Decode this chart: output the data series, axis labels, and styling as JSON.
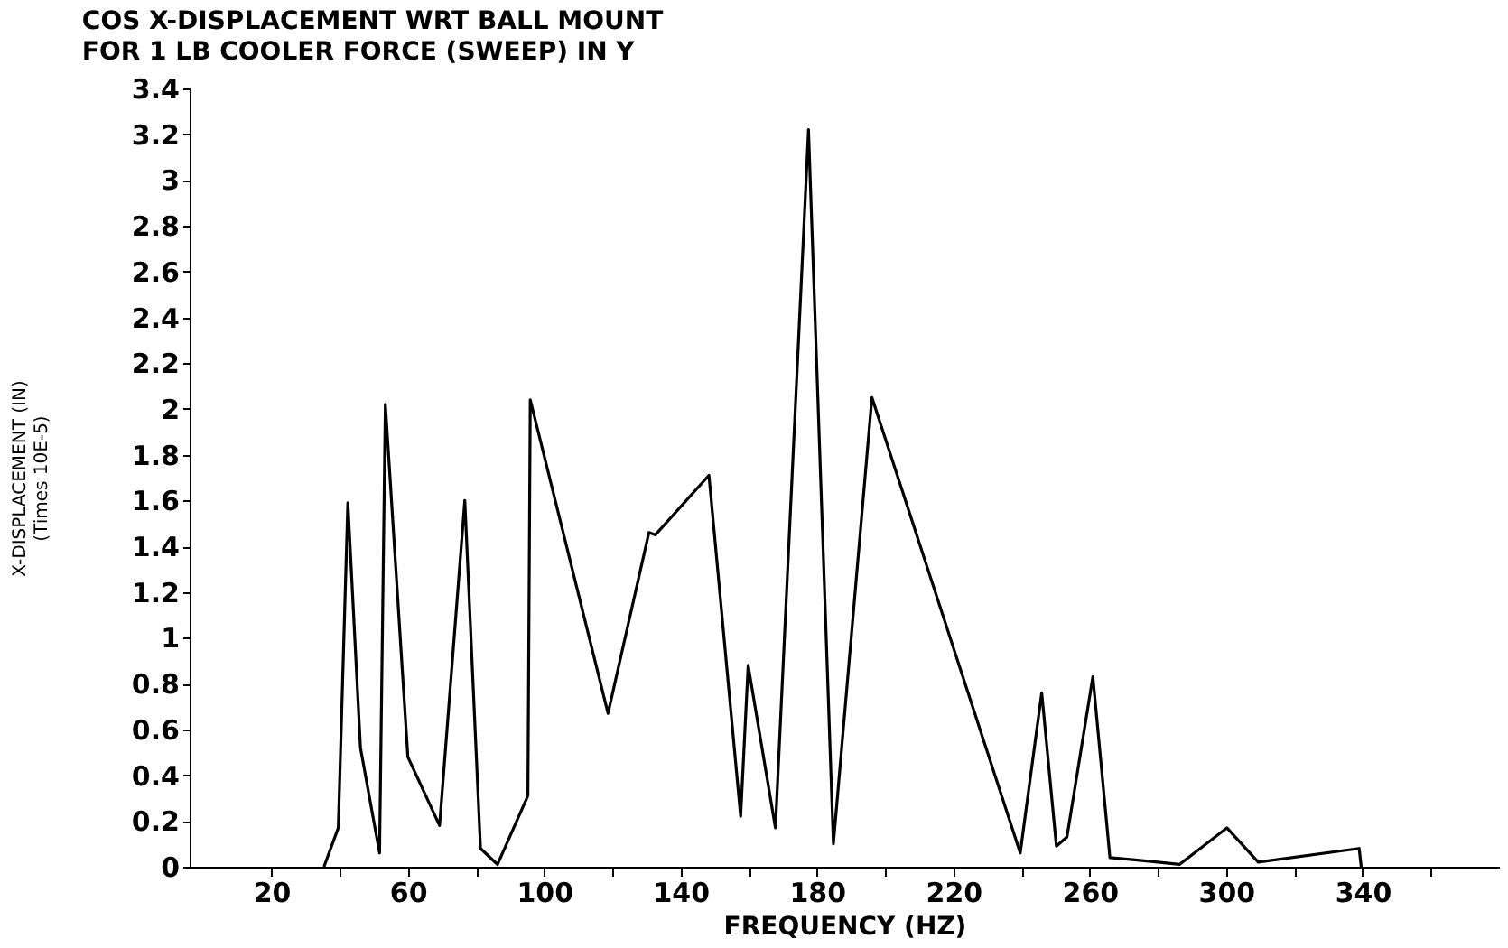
{
  "chart_data": {
    "type": "line",
    "title": "COS X-DISPLACEMENT WRT BALL MOUNT",
    "subtitle": "FOR 1 LB COOLER FORCE (SWEEP) IN Y",
    "xlabel": "FREQUENCY (HZ)",
    "ylabel": "X-DISPLACEMENT (IN)\n(Times 10E-5)",
    "x": [
      35.4,
      39.6,
      42.4,
      46.1,
      51.7,
      53.4,
      60.0,
      69.3,
      76.7,
      81.3,
      86.3,
      95.2,
      95.9,
      118.7,
      130.7,
      132.6,
      148.3,
      157.6,
      159.8,
      167.8,
      177.5,
      184.8,
      196.1,
      239.6,
      245.9,
      250.2,
      253.3,
      260.9,
      265.9,
      273.3,
      286.3,
      300.2,
      309.4,
      339.0,
      339.6
    ],
    "series": [
      {
        "color": "#000000",
        "values": [
          0,
          0.17,
          1.59,
          0.52,
          0.06,
          2.02,
          0.48,
          0.18,
          1.6,
          0.08,
          0.01,
          0.31,
          2.04,
          0.67,
          1.46,
          1.45,
          1.71,
          0.22,
          0.88,
          0.17,
          3.22,
          0.1,
          2.05,
          0.06,
          0.76,
          0.09,
          0.13,
          0.83,
          0.04,
          0.03,
          0.01,
          0.17,
          0.02,
          0.08,
          0
        ]
      }
    ],
    "xlim": [
      -4,
      380
    ],
    "xticks": [
      20,
      {
        "value": 40,
        "label": null
      },
      60,
      {
        "value": 80,
        "label": null
      },
      100,
      {
        "value": 120,
        "label": null
      },
      140,
      {
        "value": 160,
        "label": null
      },
      180,
      {
        "value": 200,
        "label": null
      },
      220,
      {
        "value": 240,
        "label": null
      },
      260,
      {
        "value": 280,
        "label": null
      },
      300,
      {
        "value": 320,
        "label": null
      },
      340,
      {
        "value": 360,
        "label": null
      }
    ],
    "ylim": [
      0,
      3.4
    ],
    "yticks": [
      0,
      0.2,
      0.4,
      0.6,
      0.8,
      1,
      1.2,
      1.4,
      1.6,
      1.8,
      2,
      2.2,
      2.4,
      2.6,
      2.8,
      3,
      3.2,
      3.4
    ],
    "grid": false,
    "legend": false,
    "marker": "none",
    "line_style": "solid"
  }
}
